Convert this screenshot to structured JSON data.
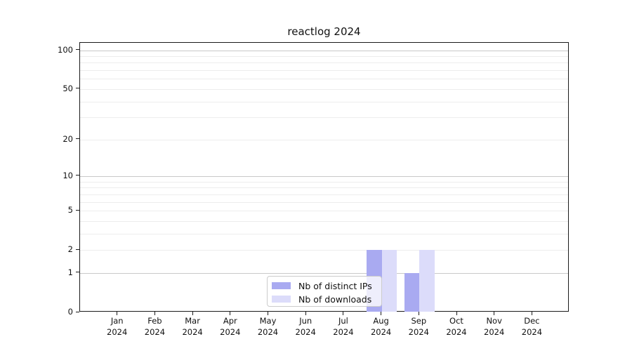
{
  "chart_data": {
    "type": "bar",
    "title": "reactlog 2024",
    "x_year": "2024",
    "categories": [
      "Jan",
      "Feb",
      "Mar",
      "Apr",
      "May",
      "Jun",
      "Jul",
      "Aug",
      "Sep",
      "Oct",
      "Nov",
      "Dec"
    ],
    "series": [
      {
        "name": "Nb of distinct IPs",
        "color": "#a9aaf1",
        "values": [
          0,
          0,
          0,
          0,
          0,
          0,
          0,
          2,
          1,
          0,
          0,
          0
        ]
      },
      {
        "name": "Nb of downloads",
        "color": "#dcdcfa",
        "values": [
          0,
          0,
          0,
          0,
          0,
          0,
          0,
          2,
          2,
          0,
          0,
          0
        ]
      }
    ],
    "y_axis": {
      "scale": "log1p",
      "tick_values": [
        0,
        1,
        2,
        5,
        10,
        20,
        50,
        100
      ],
      "tick_labels": [
        "0",
        "1",
        "2",
        "5",
        "10",
        "20",
        "50",
        "100"
      ],
      "max": 100,
      "minor_gridline_values": [
        3,
        4,
        6,
        7,
        8,
        9,
        30,
        40,
        60,
        70,
        80,
        90
      ],
      "emphasized_gridline_values": [
        1,
        10,
        100
      ]
    },
    "legend": {
      "position": "lower center inside"
    },
    "grid": true,
    "colors": {
      "major_grid": "#c9c9c9",
      "minor_grid": "#ededed",
      "axis": "#1a1a1a",
      "background": "#ffffff"
    }
  }
}
